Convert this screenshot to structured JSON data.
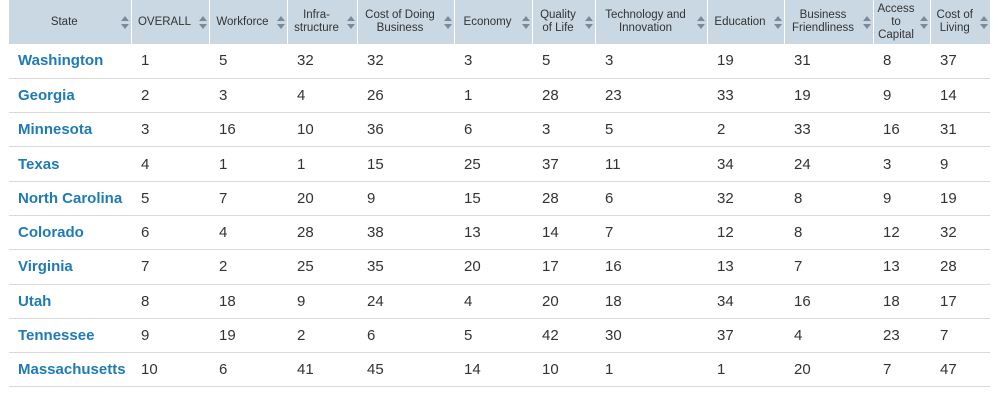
{
  "table": {
    "columns": [
      {
        "key": "state",
        "label": "State"
      },
      {
        "key": "overall",
        "label": "OVERALL"
      },
      {
        "key": "workforce",
        "label": "Workforce"
      },
      {
        "key": "infrastructure",
        "label": "Infra-structure"
      },
      {
        "key": "cost_of_doing_business",
        "label": "Cost of Doing Business"
      },
      {
        "key": "economy",
        "label": "Economy"
      },
      {
        "key": "quality_of_life",
        "label": "Quality of Life"
      },
      {
        "key": "technology_and_innovation",
        "label": "Technology and Innovation"
      },
      {
        "key": "education",
        "label": "Education"
      },
      {
        "key": "business_friendliness",
        "label": "Business Friendliness"
      },
      {
        "key": "access_to_capital",
        "label": "Access to Capital"
      },
      {
        "key": "cost_of_living",
        "label": "Cost of Living"
      }
    ],
    "rows": [
      [
        "Washington",
        "1",
        "5",
        "32",
        "32",
        "3",
        "5",
        "3",
        "19",
        "31",
        "8",
        "37"
      ],
      [
        "Georgia",
        "2",
        "3",
        "4",
        "26",
        "1",
        "28",
        "23",
        "33",
        "19",
        "9",
        "14"
      ],
      [
        "Minnesota",
        "3",
        "16",
        "10",
        "36",
        "6",
        "3",
        "5",
        "2",
        "33",
        "16",
        "31"
      ],
      [
        "Texas",
        "4",
        "1",
        "1",
        "15",
        "25",
        "37",
        "11",
        "34",
        "24",
        "3",
        "9"
      ],
      [
        "North Carolina",
        "5",
        "7",
        "20",
        "9",
        "15",
        "28",
        "6",
        "32",
        "8",
        "9",
        "19"
      ],
      [
        "Colorado",
        "6",
        "4",
        "28",
        "38",
        "13",
        "14",
        "7",
        "12",
        "8",
        "12",
        "32"
      ],
      [
        "Virginia",
        "7",
        "2",
        "25",
        "35",
        "20",
        "17",
        "16",
        "13",
        "7",
        "13",
        "28"
      ],
      [
        "Utah",
        "8",
        "18",
        "9",
        "24",
        "4",
        "20",
        "18",
        "34",
        "16",
        "18",
        "17"
      ],
      [
        "Tennessee",
        "9",
        "19",
        "2",
        "6",
        "5",
        "42",
        "30",
        "37",
        "4",
        "23",
        "7"
      ],
      [
        "Massachusetts",
        "10",
        "6",
        "41",
        "45",
        "14",
        "10",
        "1",
        "1",
        "20",
        "7",
        "47"
      ]
    ]
  },
  "colors": {
    "header_bg": "#cad8e3",
    "state_link": "#1e7bb5",
    "text": "#333333",
    "row_border": "#d9d9d9"
  },
  "icons": {
    "sort": "sort-arrows-icon"
  }
}
